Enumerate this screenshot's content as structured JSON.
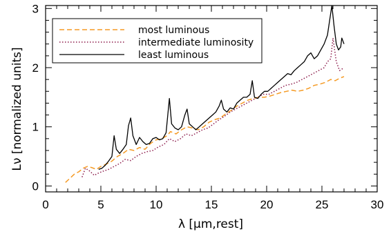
{
  "chart_data": {
    "type": "line",
    "title": "",
    "xlabel": "λ [μm,rest]",
    "ylabel": "Lν [normalized units]",
    "xlim": [
      0,
      30
    ],
    "ylim": [
      -0.1,
      3.05
    ],
    "x_ticks": [
      "0",
      "5",
      "10",
      "15",
      "20",
      "25",
      "30"
    ],
    "y_ticks": [
      "0",
      "1",
      "2",
      "3"
    ],
    "legend_position": "top-left",
    "series": [
      {
        "name": "most luminous",
        "style": "dashed",
        "color": "#F59A23",
        "points": [
          [
            1.8,
            0.06
          ],
          [
            2.2,
            0.13
          ],
          [
            2.6,
            0.2
          ],
          [
            3.0,
            0.24
          ],
          [
            3.4,
            0.3
          ],
          [
            3.8,
            0.33
          ],
          [
            4.2,
            0.31
          ],
          [
            4.6,
            0.28
          ],
          [
            5.0,
            0.33
          ],
          [
            5.5,
            0.37
          ],
          [
            6.0,
            0.42
          ],
          [
            6.5,
            0.5
          ],
          [
            7.0,
            0.55
          ],
          [
            7.5,
            0.62
          ],
          [
            8.0,
            0.6
          ],
          [
            8.5,
            0.65
          ],
          [
            9.0,
            0.62
          ],
          [
            9.5,
            0.72
          ],
          [
            10.0,
            0.78
          ],
          [
            10.5,
            0.8
          ],
          [
            11.0,
            0.85
          ],
          [
            11.3,
            0.92
          ],
          [
            11.8,
            0.88
          ],
          [
            12.3,
            0.95
          ],
          [
            12.8,
            1.0
          ],
          [
            13.3,
            0.98
          ],
          [
            13.8,
            0.95
          ],
          [
            14.3,
            1.0
          ],
          [
            14.8,
            1.08
          ],
          [
            15.3,
            1.12
          ],
          [
            15.8,
            1.15
          ],
          [
            16.3,
            1.22
          ],
          [
            16.8,
            1.28
          ],
          [
            17.3,
            1.35
          ],
          [
            17.8,
            1.4
          ],
          [
            18.3,
            1.45
          ],
          [
            18.8,
            1.48
          ],
          [
            19.3,
            1.5
          ],
          [
            19.8,
            1.5
          ],
          [
            20.3,
            1.52
          ],
          [
            20.8,
            1.55
          ],
          [
            21.3,
            1.58
          ],
          [
            21.8,
            1.6
          ],
          [
            22.3,
            1.62
          ],
          [
            22.8,
            1.6
          ],
          [
            23.3,
            1.62
          ],
          [
            23.8,
            1.65
          ],
          [
            24.3,
            1.7
          ],
          [
            24.8,
            1.72
          ],
          [
            25.3,
            1.75
          ],
          [
            25.8,
            1.8
          ],
          [
            26.2,
            1.78
          ],
          [
            26.6,
            1.82
          ],
          [
            27.0,
            1.85
          ]
        ]
      },
      {
        "name": "intermediate luminosity",
        "style": "dotted",
        "color": "#8B1A4A",
        "points": [
          [
            3.3,
            0.15
          ],
          [
            3.6,
            0.3
          ],
          [
            4.0,
            0.25
          ],
          [
            4.4,
            0.18
          ],
          [
            4.8,
            0.22
          ],
          [
            5.2,
            0.25
          ],
          [
            5.7,
            0.28
          ],
          [
            6.2,
            0.33
          ],
          [
            6.7,
            0.38
          ],
          [
            7.2,
            0.45
          ],
          [
            7.7,
            0.43
          ],
          [
            8.2,
            0.5
          ],
          [
            8.7,
            0.55
          ],
          [
            9.2,
            0.58
          ],
          [
            9.7,
            0.6
          ],
          [
            10.2,
            0.66
          ],
          [
            10.7,
            0.7
          ],
          [
            11.2,
            0.8
          ],
          [
            11.7,
            0.75
          ],
          [
            12.2,
            0.8
          ],
          [
            12.7,
            0.88
          ],
          [
            13.2,
            0.85
          ],
          [
            13.7,
            0.9
          ],
          [
            14.2,
            0.95
          ],
          [
            14.7,
            0.98
          ],
          [
            15.2,
            1.05
          ],
          [
            15.7,
            1.12
          ],
          [
            16.2,
            1.18
          ],
          [
            16.7,
            1.25
          ],
          [
            17.2,
            1.3
          ],
          [
            17.7,
            1.35
          ],
          [
            18.2,
            1.4
          ],
          [
            18.7,
            1.45
          ],
          [
            19.2,
            1.5
          ],
          [
            19.7,
            1.55
          ],
          [
            20.2,
            1.55
          ],
          [
            20.7,
            1.6
          ],
          [
            21.2,
            1.65
          ],
          [
            21.7,
            1.7
          ],
          [
            22.2,
            1.72
          ],
          [
            22.7,
            1.75
          ],
          [
            23.2,
            1.8
          ],
          [
            23.7,
            1.85
          ],
          [
            24.2,
            1.9
          ],
          [
            24.7,
            1.95
          ],
          [
            25.2,
            2.0
          ],
          [
            25.5,
            2.1
          ],
          [
            25.8,
            2.15
          ],
          [
            26.0,
            2.5
          ],
          [
            26.3,
            2.1
          ],
          [
            26.6,
            1.95
          ],
          [
            27.0,
            2.0
          ]
        ]
      },
      {
        "name": "least luminous",
        "style": "solid",
        "color": "#000000",
        "points": [
          [
            4.8,
            0.28
          ],
          [
            5.1,
            0.3
          ],
          [
            5.4,
            0.35
          ],
          [
            5.7,
            0.42
          ],
          [
            6.0,
            0.5
          ],
          [
            6.2,
            0.85
          ],
          [
            6.4,
            0.62
          ],
          [
            6.7,
            0.55
          ],
          [
            7.0,
            0.62
          ],
          [
            7.3,
            0.7
          ],
          [
            7.5,
            1.02
          ],
          [
            7.7,
            1.15
          ],
          [
            7.9,
            0.85
          ],
          [
            8.2,
            0.7
          ],
          [
            8.5,
            0.82
          ],
          [
            8.8,
            0.75
          ],
          [
            9.1,
            0.7
          ],
          [
            9.4,
            0.72
          ],
          [
            9.7,
            0.8
          ],
          [
            10.0,
            0.82
          ],
          [
            10.3,
            0.78
          ],
          [
            10.6,
            0.8
          ],
          [
            10.9,
            0.9
          ],
          [
            11.2,
            1.48
          ],
          [
            11.4,
            1.05
          ],
          [
            11.7,
            0.98
          ],
          [
            12.0,
            0.95
          ],
          [
            12.3,
            1.0
          ],
          [
            12.6,
            1.2
          ],
          [
            12.8,
            1.3
          ],
          [
            13.0,
            1.05
          ],
          [
            13.3,
            1.0
          ],
          [
            13.6,
            0.95
          ],
          [
            13.9,
            1.0
          ],
          [
            14.2,
            1.05
          ],
          [
            14.5,
            1.1
          ],
          [
            14.8,
            1.15
          ],
          [
            15.1,
            1.2
          ],
          [
            15.4,
            1.25
          ],
          [
            15.7,
            1.35
          ],
          [
            15.9,
            1.45
          ],
          [
            16.1,
            1.3
          ],
          [
            16.4,
            1.25
          ],
          [
            16.7,
            1.32
          ],
          [
            17.0,
            1.3
          ],
          [
            17.3,
            1.4
          ],
          [
            17.6,
            1.45
          ],
          [
            17.9,
            1.5
          ],
          [
            18.2,
            1.5
          ],
          [
            18.5,
            1.55
          ],
          [
            18.7,
            1.78
          ],
          [
            18.9,
            1.5
          ],
          [
            19.2,
            1.48
          ],
          [
            19.5,
            1.55
          ],
          [
            19.8,
            1.6
          ],
          [
            20.1,
            1.6
          ],
          [
            20.4,
            1.65
          ],
          [
            20.7,
            1.7
          ],
          [
            21.0,
            1.75
          ],
          [
            21.3,
            1.8
          ],
          [
            21.6,
            1.85
          ],
          [
            21.9,
            1.9
          ],
          [
            22.2,
            1.88
          ],
          [
            22.5,
            1.95
          ],
          [
            22.8,
            2.0
          ],
          [
            23.1,
            2.05
          ],
          [
            23.4,
            2.1
          ],
          [
            23.7,
            2.2
          ],
          [
            24.0,
            2.25
          ],
          [
            24.3,
            2.15
          ],
          [
            24.6,
            2.2
          ],
          [
            24.9,
            2.3
          ],
          [
            25.2,
            2.4
          ],
          [
            25.5,
            2.55
          ],
          [
            25.7,
            2.8
          ],
          [
            25.9,
            3.05
          ],
          [
            26.1,
            2.7
          ],
          [
            26.3,
            2.4
          ],
          [
            26.5,
            2.3
          ],
          [
            26.7,
            2.35
          ],
          [
            26.8,
            2.5
          ],
          [
            27.0,
            2.4
          ]
        ]
      }
    ]
  }
}
